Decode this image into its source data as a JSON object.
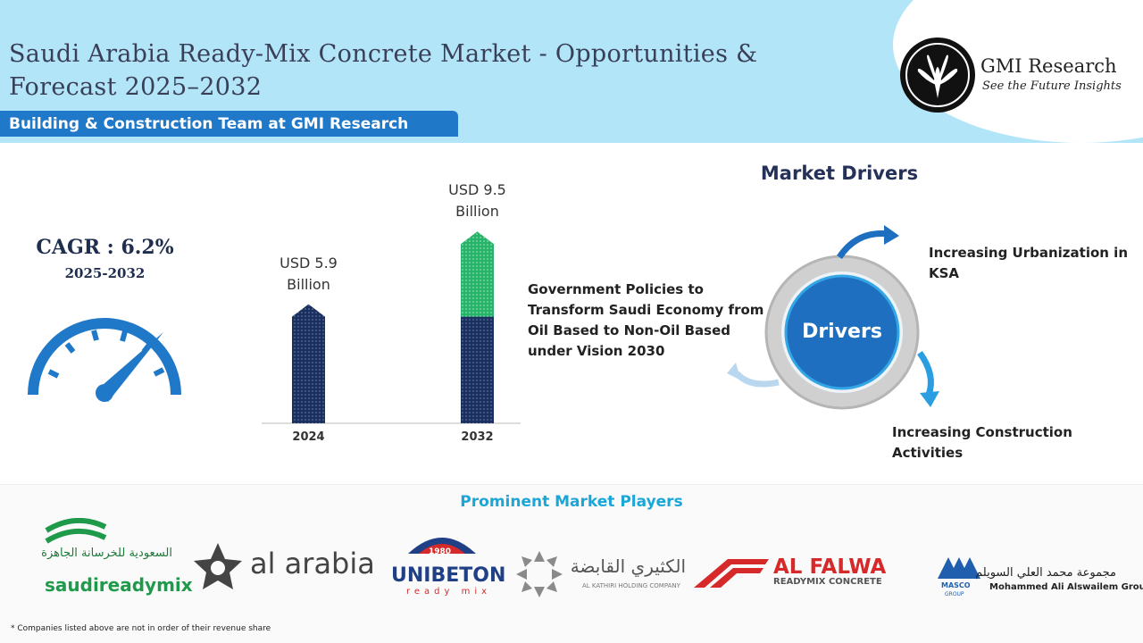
{
  "header": {
    "title": "Saudi Arabia Ready-Mix Concrete Market - Opportunities & Forecast 2025–2032",
    "team": "Building & Construction Team at GMI Research",
    "brand": "GMI Research",
    "tagline": "See the Future Insights"
  },
  "cagr": {
    "label": "CAGR : 6.2%",
    "period": "2025-2032"
  },
  "bars": [
    {
      "year": "2024",
      "value": 5.9,
      "value_label": "USD 5.9 Billion"
    },
    {
      "year": "2032",
      "value": 9.5,
      "value_label": "USD 9.5 Billion"
    }
  ],
  "drivers": {
    "title": "Market Drivers",
    "center": "Drivers",
    "items": [
      "Increasing Urbanization in KSA",
      "Government Policies to Transform Saudi Economy from Oil Based to Non-Oil Based under Vision 2030",
      "Increasing Construction Activities"
    ]
  },
  "players": {
    "title": "Prominent Market Players",
    "logos": [
      {
        "arabic": "السعودية للخرسانة الجاهزة",
        "name": "saudireadymix"
      },
      {
        "name": "al arabia"
      },
      {
        "year": "1980",
        "name": "UNIBETON",
        "sub": "ready mix"
      },
      {
        "arabic": "الكثيري القابضة",
        "name": "AL KATHIRI HOLDING COMPANY"
      },
      {
        "name": "AL FALWA",
        "sub": "READYMIX CONCRETE"
      },
      {
        "short": "MASCO",
        "group": "GROUP",
        "arabic": "مجموعة محمد العلي السويلم",
        "name": "Mohammed Ali Alswailem Group"
      }
    ]
  },
  "footnote": "* Companies listed above are not in order of their revenue share"
}
